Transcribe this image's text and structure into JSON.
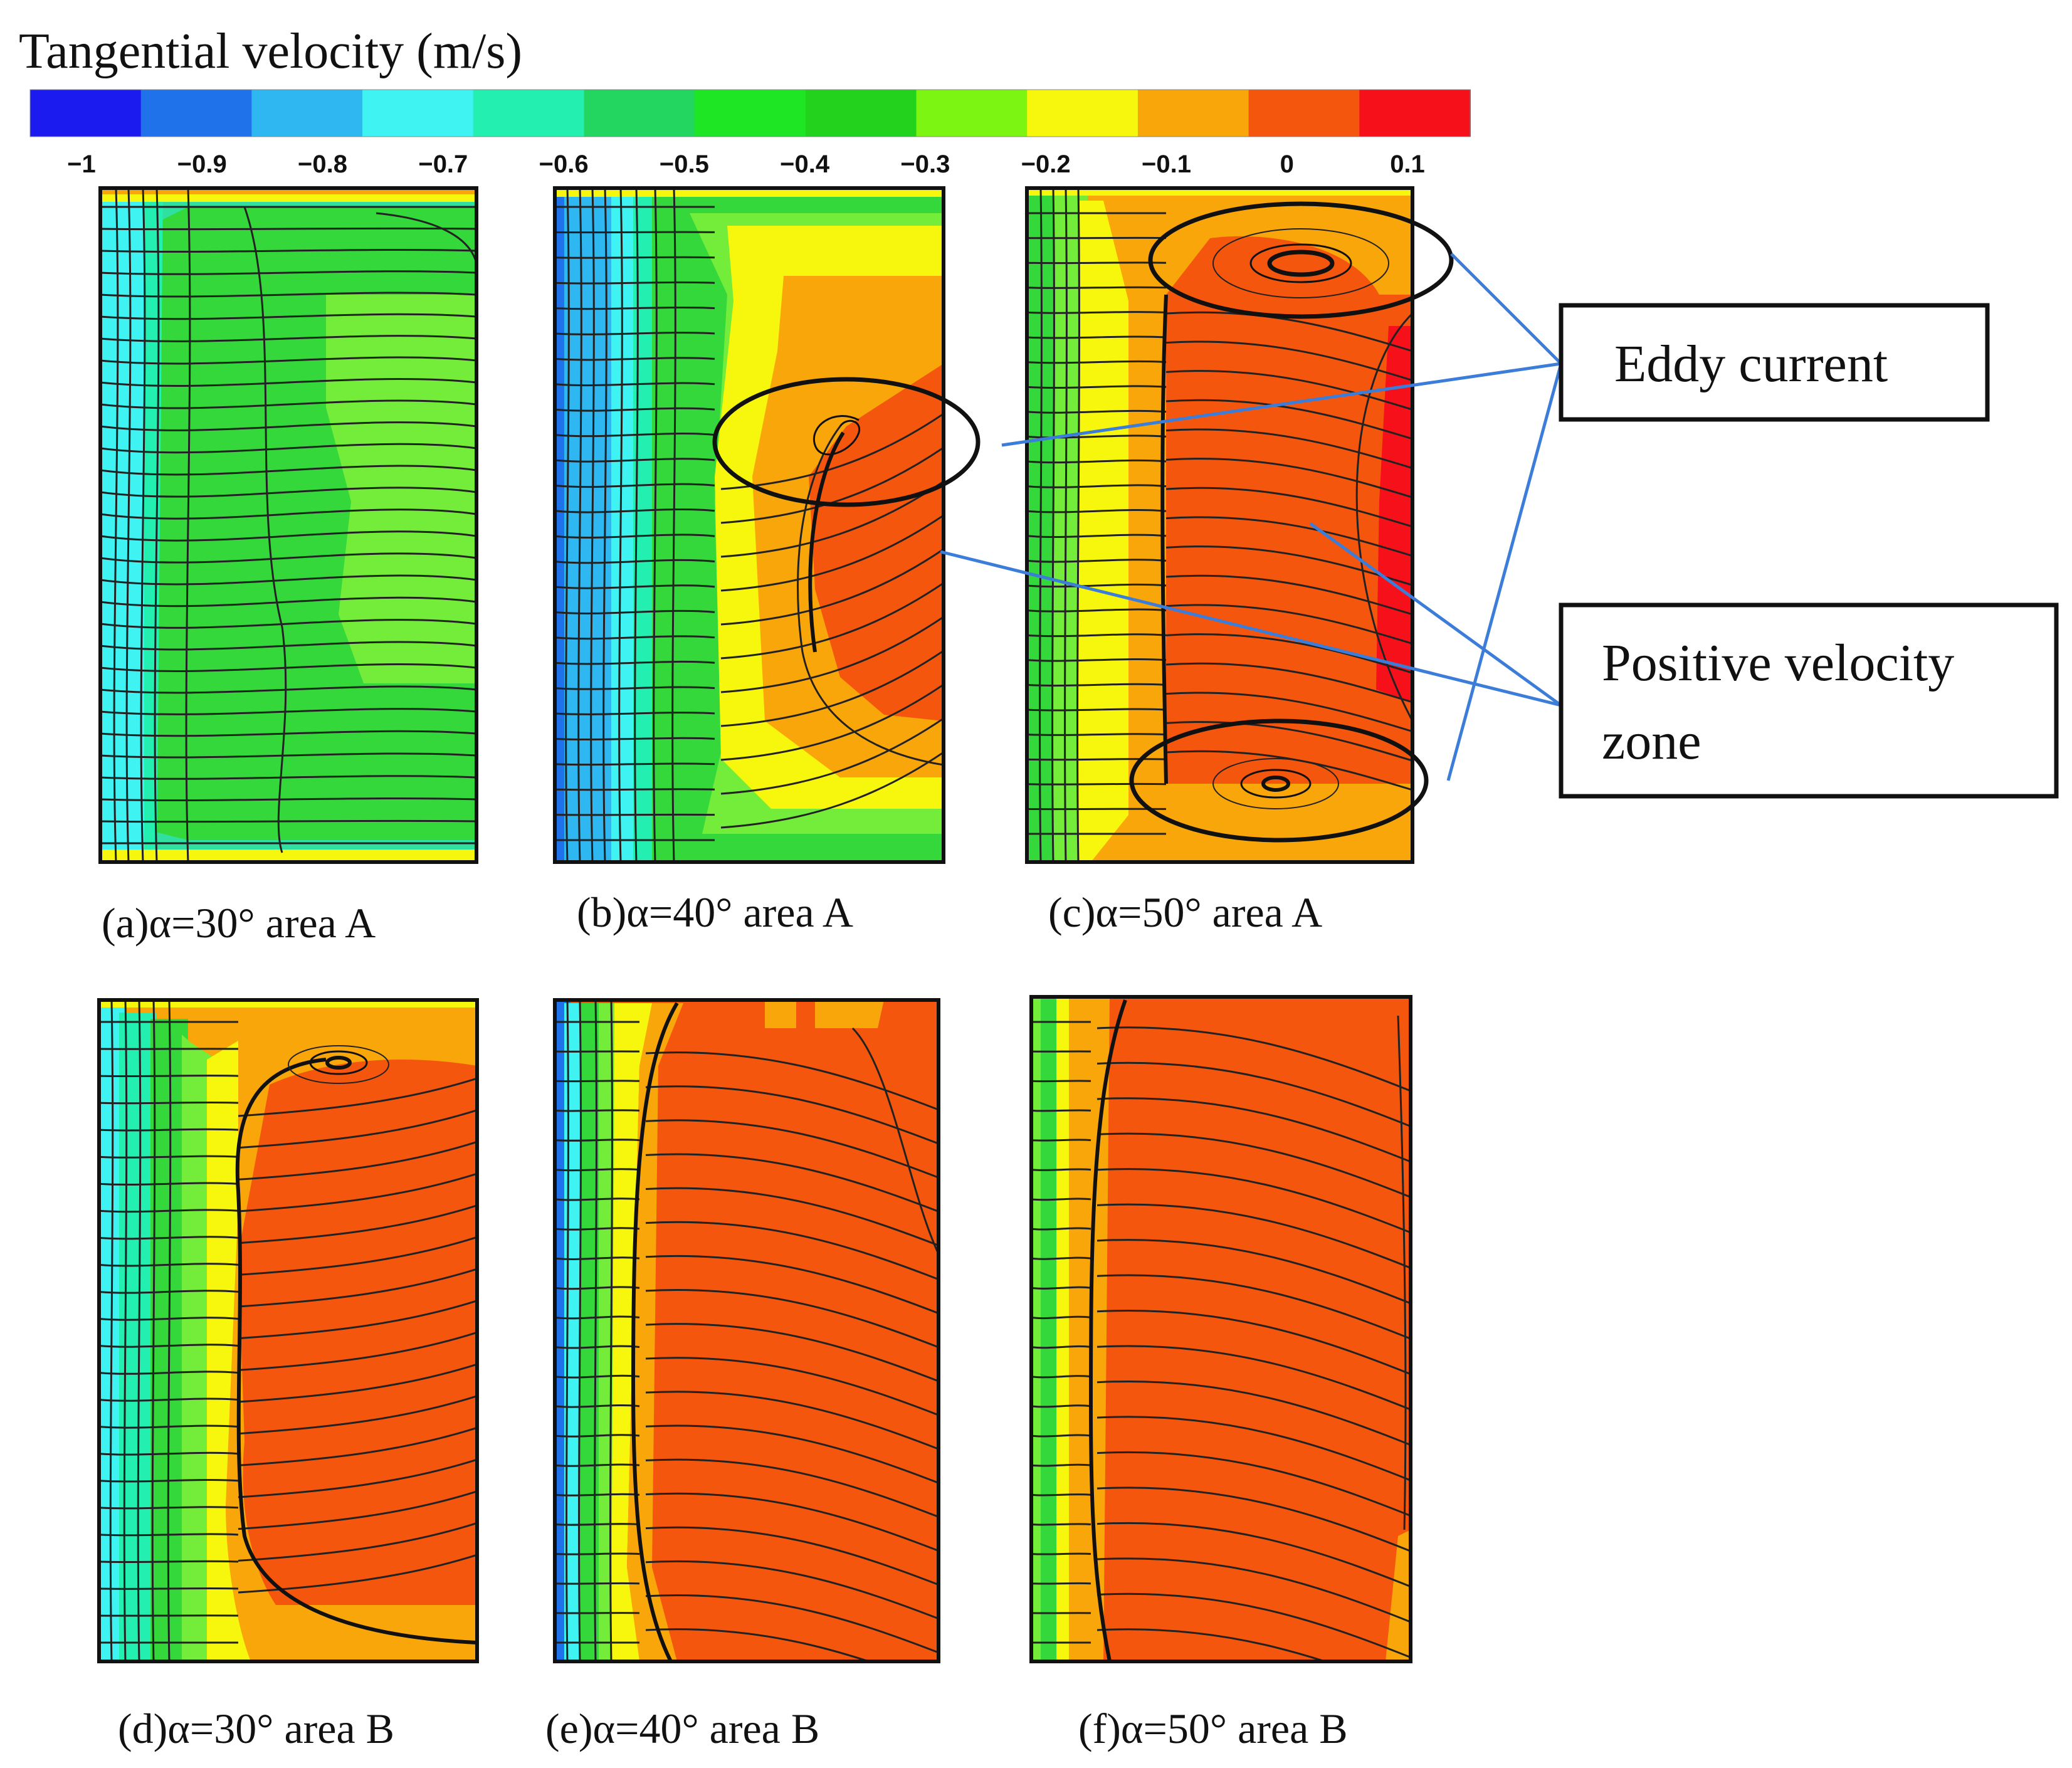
{
  "colorbar": {
    "title": "Tangential  velocity (m/s)",
    "ticks": [
      "−1",
      "−0.9",
      "−0.8",
      "−0.7",
      "−0.6",
      "−0.5",
      "−0.4",
      "−0.3",
      "−0.2",
      "−0.1",
      "0",
      "0.1"
    ],
    "colors": [
      "#1b1bf0",
      "#1f72ea",
      "#2fb7f2",
      "#3ff3f3",
      "#23f0b0",
      "#22d660",
      "#1fe625",
      "#23d21c",
      "#7df513",
      "#f7f70d",
      "#f9a60a",
      "#f5560e",
      "#f5101a"
    ]
  },
  "colors": {
    "green": "#34d83a",
    "lightgreen": "#74ec3a",
    "yellow": "#f7f70d",
    "orange": "#f9a60a",
    "redorange": "#f5560e",
    "red": "#f5101a",
    "cyan": "#3ff3f3",
    "blue": "#1f72ea",
    "leader": "#3b7dd8"
  },
  "panels": [
    {
      "caption": "(a)α=30°  area A"
    },
    {
      "caption": "(b)α=40°  area A"
    },
    {
      "caption": "(c)α=50°  area A"
    },
    {
      "caption": "(d)α=30°  area B"
    },
    {
      "caption": "(e)α=40°  area B"
    },
    {
      "caption": "(f)α=50°  area B"
    }
  ],
  "annotations": {
    "eddy": "Eddy current",
    "positive_line1": "Positive velocity",
    "positive_line2": "zone"
  }
}
